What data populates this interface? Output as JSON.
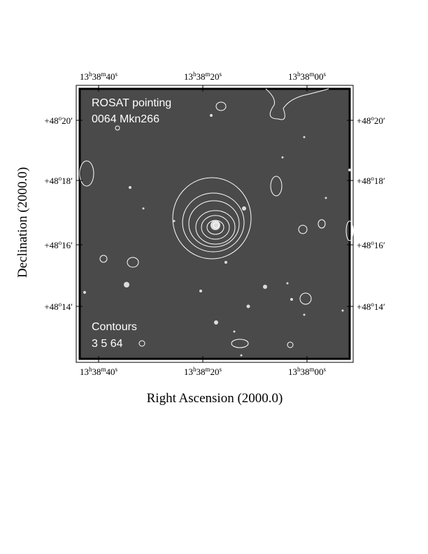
{
  "chart_data": {
    "type": "image",
    "xlabel": "Right Ascension (2000.0)",
    "ylabel": "Declination (2000.0)",
    "x_ticks": [
      {
        "h": "13",
        "m": "38",
        "s": "40"
      },
      {
        "h": "13",
        "m": "38",
        "s": "20"
      },
      {
        "h": "13",
        "m": "38",
        "s": "00"
      }
    ],
    "y_ticks": [
      {
        "deg": "+48",
        "min": "20"
      },
      {
        "deg": "+48",
        "min": "18"
      },
      {
        "deg": "+48",
        "min": "16"
      },
      {
        "deg": "+48",
        "min": "14"
      }
    ],
    "annotations": {
      "title_line1": "ROSAT pointing",
      "title_line2": "0064 Mkn266",
      "contours_label": "Contours",
      "contours_levels": "3 5 64"
    },
    "background_color": "#4a4a4a",
    "contour_color": "#ffffff"
  }
}
